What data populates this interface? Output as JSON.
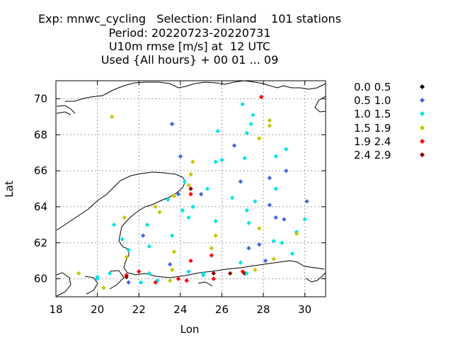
{
  "header": {
    "line1": "Exp: mnwc_cycling   Selection: Finland    101 stations",
    "line2": "Period: 20220723-20220731",
    "line3": "U10m rmse [m/s] at  12 UTC",
    "line4": "Used {All hours} + 00 01 ... 09"
  },
  "chart_data": {
    "type": "scatter",
    "xlabel": "Lon",
    "ylabel": "Lat",
    "xlim": [
      18,
      31
    ],
    "ylim": [
      59,
      71
    ],
    "xticks": [
      18,
      20,
      22,
      24,
      26,
      28,
      30
    ],
    "yticks": [
      60,
      62,
      64,
      66,
      68,
      70
    ],
    "grid": true,
    "legend_position": "right",
    "classes": [
      {
        "label": "0.0 0.5",
        "color": "#000000"
      },
      {
        "label": "0.5 1.0",
        "color": "#4169e1"
      },
      {
        "label": "1.0 1.5",
        "color": "#00e5e5"
      },
      {
        "label": "1.5 1.9",
        "color": "#c8c800"
      },
      {
        "label": "1.9 2.4",
        "color": "#ff0000"
      },
      {
        "label": "2.4 2.9",
        "color": "#8b0000"
      }
    ],
    "points": [
      [
        20.7,
        69.0,
        3
      ],
      [
        23.6,
        68.6,
        1
      ],
      [
        27.9,
        70.1,
        4
      ],
      [
        27.0,
        69.7,
        2
      ],
      [
        27.5,
        69.1,
        2
      ],
      [
        27.4,
        68.6,
        2
      ],
      [
        28.3,
        68.8,
        3
      ],
      [
        28.3,
        68.5,
        3
      ],
      [
        27.2,
        68.1,
        2
      ],
      [
        27.8,
        67.8,
        3
      ],
      [
        25.8,
        68.2,
        2
      ],
      [
        26.6,
        67.4,
        1
      ],
      [
        29.1,
        67.2,
        2
      ],
      [
        28.6,
        66.8,
        2
      ],
      [
        27.1,
        66.7,
        2
      ],
      [
        24.0,
        66.8,
        1
      ],
      [
        25.7,
        66.5,
        2
      ],
      [
        26.0,
        66.6,
        2
      ],
      [
        24.6,
        66.5,
        3
      ],
      [
        29.1,
        66.0,
        1
      ],
      [
        24.5,
        65.8,
        3
      ],
      [
        28.3,
        65.6,
        1
      ],
      [
        24.2,
        65.4,
        2
      ],
      [
        26.9,
        65.4,
        1
      ],
      [
        24.4,
        65.2,
        3
      ],
      [
        28.6,
        65.0,
        2
      ],
      [
        25.3,
        65.0,
        2
      ],
      [
        24.5,
        65.0,
        5
      ],
      [
        23.9,
        64.7,
        1
      ],
      [
        24.5,
        64.7,
        4
      ],
      [
        25.0,
        64.7,
        1
      ],
      [
        23.7,
        64.6,
        3
      ],
      [
        26.5,
        64.5,
        2
      ],
      [
        27.6,
        64.3,
        2
      ],
      [
        23.4,
        64.4,
        2
      ],
      [
        30.1,
        64.3,
        1
      ],
      [
        28.3,
        64.1,
        1
      ],
      [
        24.6,
        64.0,
        2
      ],
      [
        22.8,
        64.0,
        3
      ],
      [
        24.1,
        63.8,
        2
      ],
      [
        27.2,
        63.8,
        2
      ],
      [
        23.0,
        63.7,
        3
      ],
      [
        21.3,
        63.4,
        3
      ],
      [
        24.4,
        63.4,
        2
      ],
      [
        28.6,
        63.4,
        1
      ],
      [
        29.0,
        63.3,
        1
      ],
      [
        30.0,
        63.3,
        2
      ],
      [
        25.7,
        63.2,
        2
      ],
      [
        27.3,
        63.1,
        2
      ],
      [
        20.8,
        63.0,
        2
      ],
      [
        22.4,
        63.0,
        2
      ],
      [
        27.8,
        62.8,
        3
      ],
      [
        29.6,
        62.6,
        2
      ],
      [
        22.2,
        62.4,
        1
      ],
      [
        23.6,
        62.4,
        2
      ],
      [
        29.6,
        62.5,
        3
      ],
      [
        25.7,
        62.4,
        3
      ],
      [
        21.2,
        62.2,
        2
      ],
      [
        28.5,
        62.1,
        2
      ],
      [
        22.5,
        61.8,
        2
      ],
      [
        28.9,
        62.0,
        2
      ],
      [
        27.8,
        61.9,
        1
      ],
      [
        27.3,
        61.7,
        1
      ],
      [
        25.5,
        61.7,
        3
      ],
      [
        21.5,
        61.6,
        2
      ],
      [
        23.7,
        61.5,
        3
      ],
      [
        29.4,
        61.4,
        2
      ],
      [
        21.4,
        61.2,
        3
      ],
      [
        25.5,
        61.3,
        4
      ],
      [
        28.5,
        61.1,
        3
      ],
      [
        28.1,
        61.0,
        1
      ],
      [
        23.5,
        60.8,
        1
      ],
      [
        24.5,
        61.0,
        4
      ],
      [
        26.9,
        60.9,
        2
      ],
      [
        23.6,
        60.5,
        3
      ],
      [
        24.4,
        60.4,
        2
      ],
      [
        25.1,
        60.3,
        2
      ],
      [
        20.6,
        60.3,
        2
      ],
      [
        22.0,
        60.4,
        4
      ],
      [
        21.4,
        60.2,
        4
      ],
      [
        21.4,
        60.1,
        5
      ],
      [
        27.6,
        60.5,
        3
      ],
      [
        27.0,
        60.4,
        4
      ],
      [
        27.1,
        60.3,
        5
      ],
      [
        26.4,
        60.3,
        5
      ],
      [
        25.6,
        60.3,
        5
      ],
      [
        25.1,
        60.2,
        2
      ],
      [
        19.1,
        60.3,
        3
      ],
      [
        22.5,
        60.3,
        2
      ],
      [
        27.2,
        60.3,
        2
      ],
      [
        20.0,
        60.1,
        2
      ],
      [
        20.0,
        60.0,
        2
      ],
      [
        22.1,
        59.8,
        2
      ],
      [
        22.9,
        59.9,
        2
      ],
      [
        23.9,
        60.0,
        4
      ],
      [
        24.3,
        59.9,
        4
      ],
      [
        23.5,
        59.9,
        3
      ],
      [
        25.6,
        60.0,
        4
      ],
      [
        21.5,
        59.8,
        1
      ],
      [
        22.8,
        59.8,
        4
      ],
      [
        20.3,
        59.5,
        3
      ]
    ]
  }
}
